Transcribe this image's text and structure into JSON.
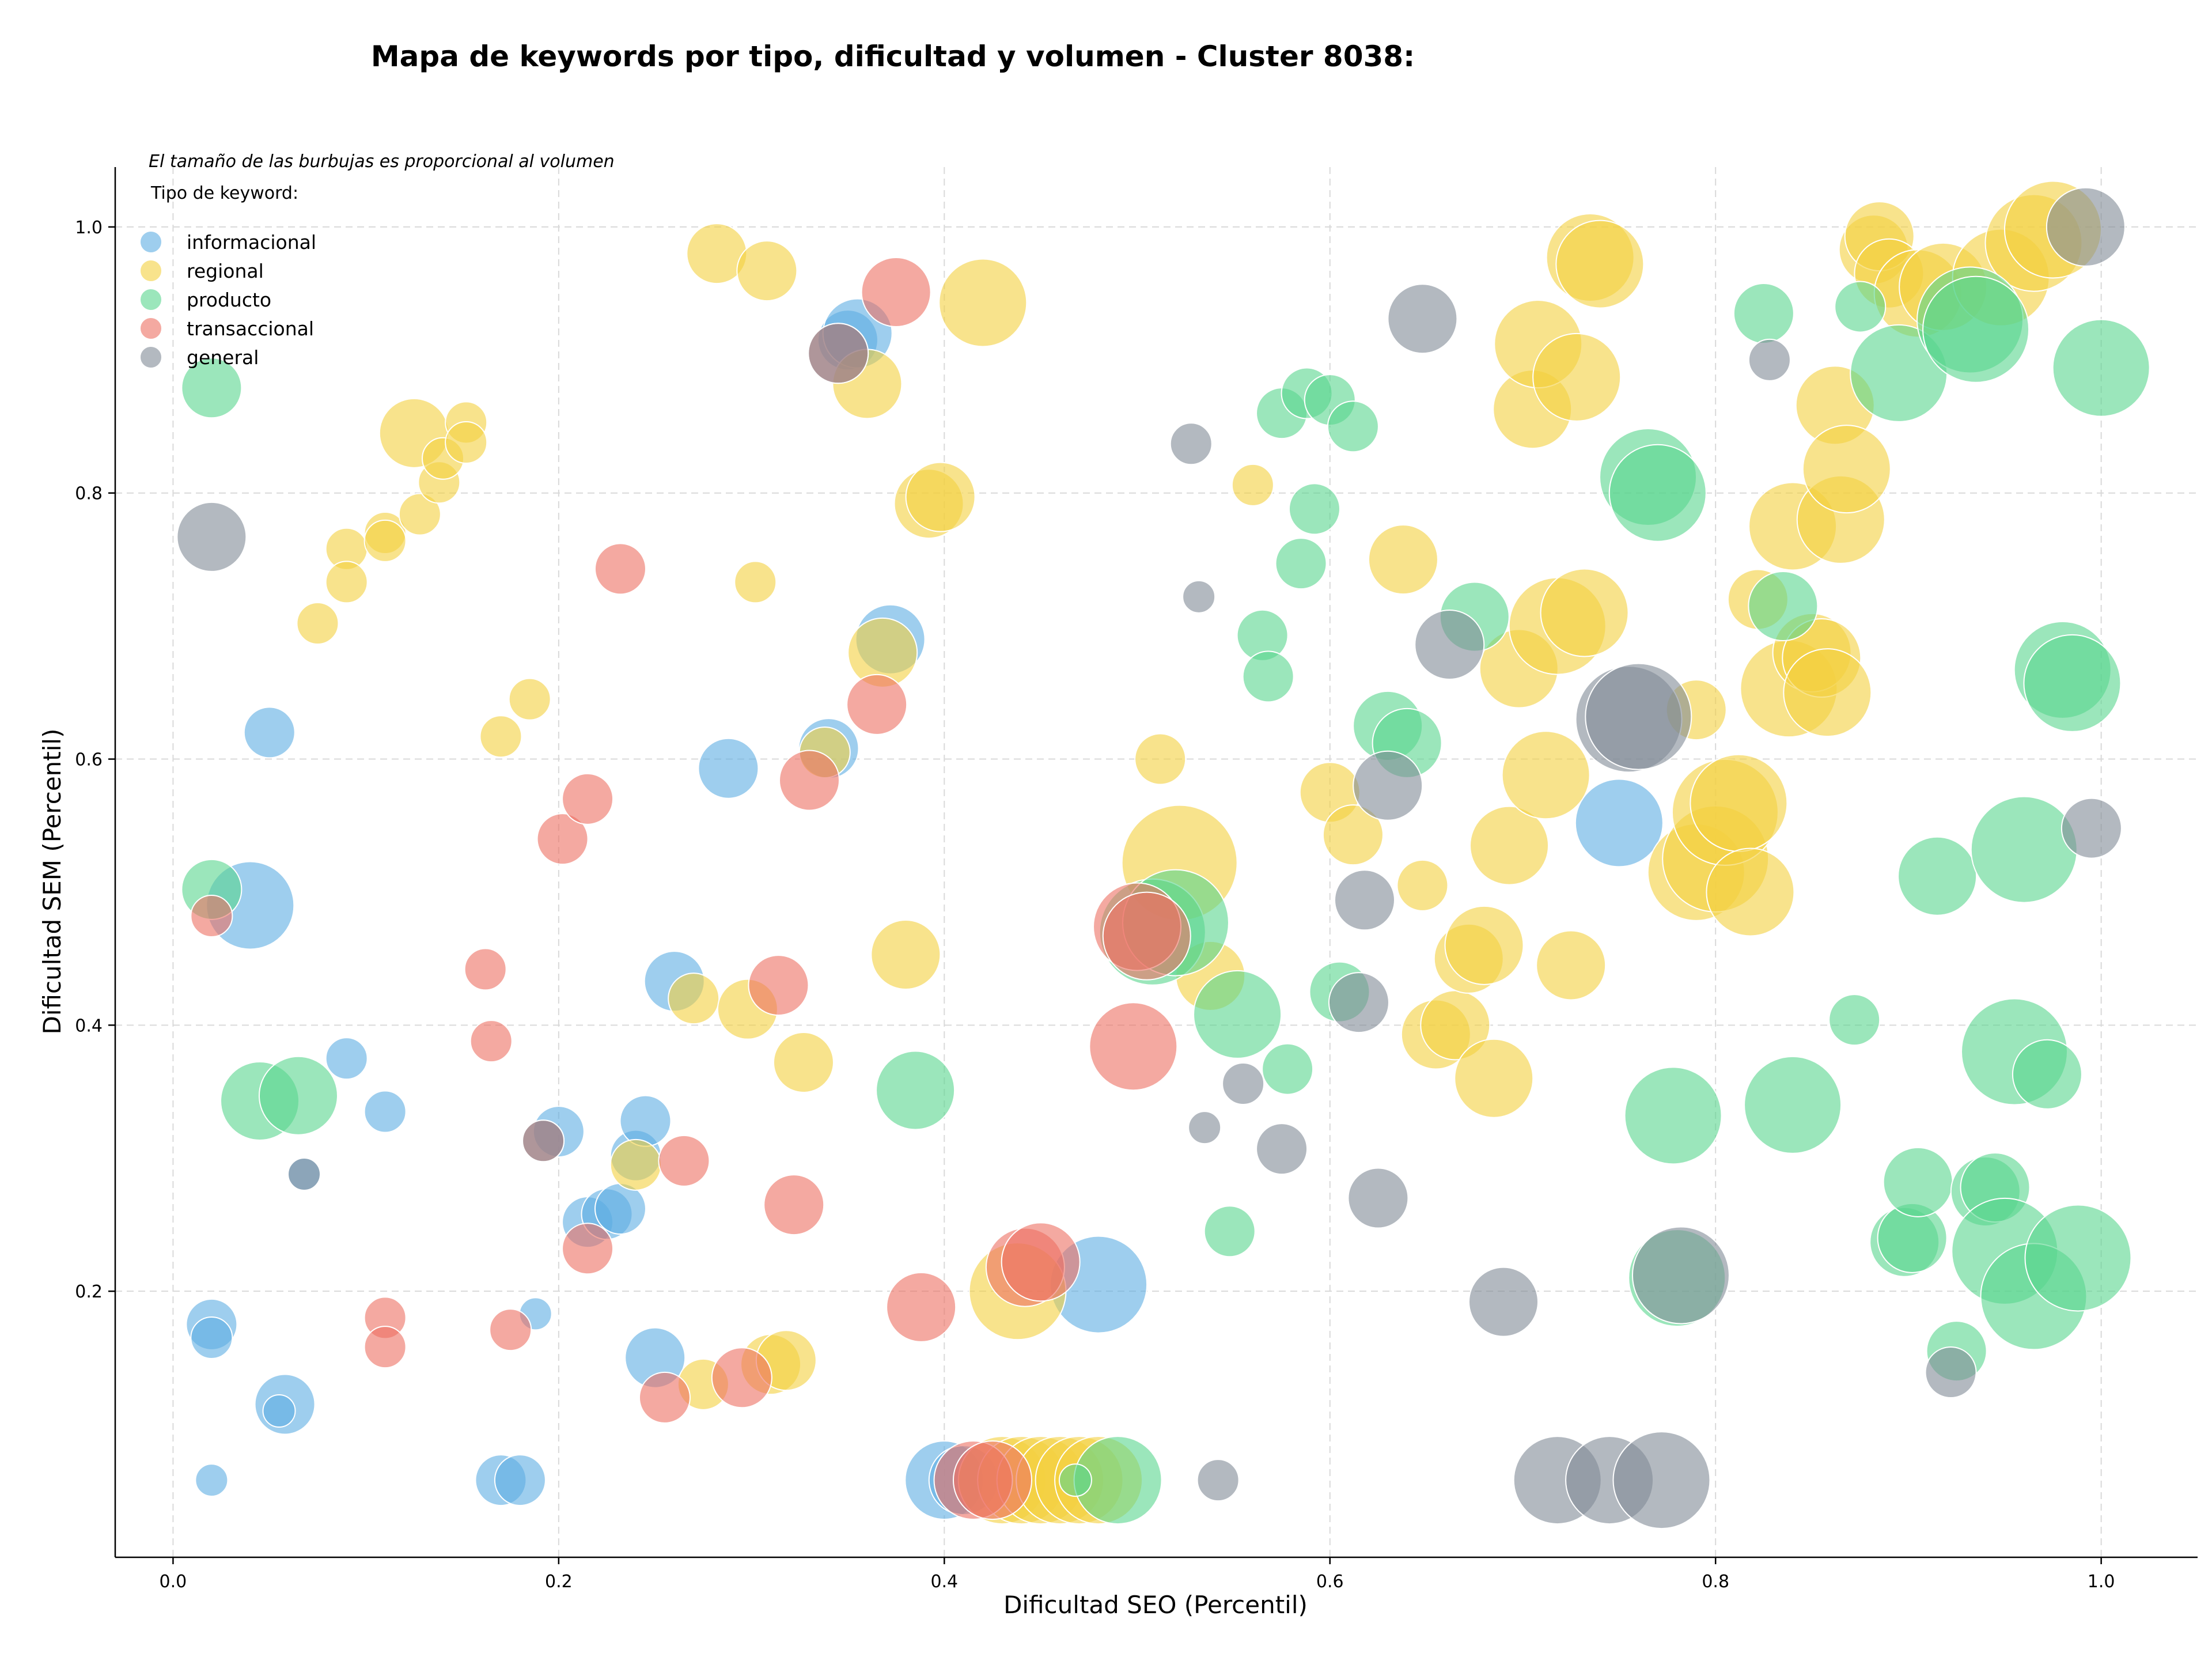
{
  "chart_data": {
    "type": "scatter",
    "title": "Mapa de keywords por tipo, dificultad y volumen - Cluster 8038:",
    "xlabel": "Dificultad SEO (Percentil)",
    "ylabel": "Dificultad SEM (Percentil)",
    "note": "El tamaño de las burbujas es proporcional al volumen",
    "legend_title": "Tipo de keyword:",
    "legend_position": "top-left",
    "grid": true,
    "xlim": [
      -0.03,
      1.05
    ],
    "ylim": [
      0.0,
      1.045
    ],
    "x_ticks": [
      "0.0",
      "0.2",
      "0.4",
      "0.6",
      "0.8",
      "1.0"
    ],
    "y_ticks": [
      "0.2",
      "0.4",
      "0.6",
      "0.8",
      "1.0"
    ],
    "x_tick_values": [
      0.0,
      0.2,
      0.4,
      0.6,
      0.8,
      1.0
    ],
    "y_tick_values": [
      0.2,
      0.4,
      0.6,
      0.8,
      1.0
    ],
    "series": [
      {
        "name": "informacional",
        "color": "#5dade2",
        "points": [
          [
            0.05,
            0.62,
            3
          ],
          [
            0.04,
            0.49,
            7
          ],
          [
            0.09,
            0.375,
            2
          ],
          [
            0.11,
            0.335,
            2
          ],
          [
            0.068,
            0.288,
            1
          ],
          [
            0.02,
            0.175,
            3
          ],
          [
            0.02,
            0.165,
            2
          ],
          [
            0.02,
            0.058,
            1
          ],
          [
            0.058,
            0.115,
            4
          ],
          [
            0.055,
            0.11,
            1
          ],
          [
            0.17,
            0.058,
            3
          ],
          [
            0.18,
            0.058,
            3
          ],
          [
            0.188,
            0.183,
            1
          ],
          [
            0.2,
            0.32,
            3
          ],
          [
            0.215,
            0.252,
            3
          ],
          [
            0.225,
            0.258,
            3
          ],
          [
            0.232,
            0.262,
            3
          ],
          [
            0.24,
            0.302,
            3
          ],
          [
            0.245,
            0.328,
            3
          ],
          [
            0.26,
            0.433,
            4
          ],
          [
            0.25,
            0.15,
            4
          ],
          [
            0.288,
            0.593,
            4
          ],
          [
            0.34,
            0.608,
            4
          ],
          [
            0.35,
            0.915,
            4
          ],
          [
            0.355,
            0.92,
            5
          ],
          [
            0.372,
            0.69,
            5
          ],
          [
            0.48,
            0.205,
            8
          ],
          [
            0.75,
            0.552,
            7
          ],
          [
            0.4,
            0.058,
            6
          ],
          [
            0.41,
            0.058,
            5
          ]
        ]
      },
      {
        "name": "regional",
        "color": "#f4d03f",
        "points": [
          [
            0.075,
            0.702,
            2
          ],
          [
            0.09,
            0.758,
            2
          ],
          [
            0.09,
            0.733,
            2
          ],
          [
            0.11,
            0.77,
            2
          ],
          [
            0.11,
            0.764,
            2
          ],
          [
            0.125,
            0.845,
            5
          ],
          [
            0.128,
            0.784,
            2
          ],
          [
            0.138,
            0.808,
            2
          ],
          [
            0.14,
            0.826,
            2
          ],
          [
            0.152,
            0.853,
            2
          ],
          [
            0.152,
            0.838,
            2
          ],
          [
            0.17,
            0.617,
            2
          ],
          [
            0.185,
            0.645,
            2
          ],
          [
            0.282,
            0.98,
            4
          ],
          [
            0.308,
            0.967,
            4
          ],
          [
            0.302,
            0.733,
            2
          ],
          [
            0.27,
            0.42,
            3
          ],
          [
            0.298,
            0.412,
            4
          ],
          [
            0.327,
            0.372,
            4
          ],
          [
            0.338,
            0.605,
            3
          ],
          [
            0.24,
            0.295,
            3
          ],
          [
            0.275,
            0.13,
            3
          ],
          [
            0.31,
            0.145,
            4
          ],
          [
            0.318,
            0.148,
            4
          ],
          [
            0.36,
            0.882,
            5
          ],
          [
            0.368,
            0.68,
            5
          ],
          [
            0.38,
            0.453,
            5
          ],
          [
            0.392,
            0.792,
            5
          ],
          [
            0.398,
            0.797,
            5
          ],
          [
            0.42,
            0.943,
            7
          ],
          [
            0.438,
            0.2,
            8
          ],
          [
            0.43,
            0.058,
            7
          ],
          [
            0.44,
            0.058,
            7
          ],
          [
            0.45,
            0.058,
            7
          ],
          [
            0.46,
            0.058,
            7
          ],
          [
            0.47,
            0.058,
            7
          ],
          [
            0.48,
            0.058,
            7
          ],
          [
            0.512,
            0.6,
            3
          ],
          [
            0.522,
            0.522,
            10
          ],
          [
            0.538,
            0.437,
            5
          ],
          [
            0.56,
            0.806,
            2
          ],
          [
            0.6,
            0.575,
            4
          ],
          [
            0.612,
            0.543,
            4
          ],
          [
            0.638,
            0.75,
            5
          ],
          [
            0.648,
            0.505,
            3
          ],
          [
            0.655,
            0.393,
            5
          ],
          [
            0.665,
            0.4,
            5
          ],
          [
            0.672,
            0.45,
            5
          ],
          [
            0.68,
            0.46,
            6
          ],
          [
            0.685,
            0.36,
            6
          ],
          [
            0.693,
            0.535,
            6
          ],
          [
            0.698,
            0.668,
            6
          ],
          [
            0.705,
            0.863,
            6
          ],
          [
            0.708,
            0.912,
            7
          ],
          [
            0.712,
            0.588,
            7
          ],
          [
            0.718,
            0.7,
            8
          ],
          [
            0.725,
            0.445,
            5
          ],
          [
            0.728,
            0.887,
            7
          ],
          [
            0.732,
            0.71,
            7
          ],
          [
            0.735,
            0.977,
            7
          ],
          [
            0.74,
            0.972,
            7
          ],
          [
            0.79,
            0.637,
            4
          ],
          [
            0.79,
            0.515,
            8
          ],
          [
            0.8,
            0.525,
            9
          ],
          [
            0.805,
            0.56,
            9
          ],
          [
            0.812,
            0.567,
            8
          ],
          [
            0.818,
            0.5,
            7
          ],
          [
            0.822,
            0.72,
            4
          ],
          [
            0.838,
            0.653,
            8
          ],
          [
            0.84,
            0.775,
            7
          ],
          [
            0.85,
            0.68,
            6
          ],
          [
            0.855,
            0.676,
            6
          ],
          [
            0.858,
            0.65,
            7
          ],
          [
            0.862,
            0.866,
            6
          ],
          [
            0.865,
            0.78,
            7
          ],
          [
            0.868,
            0.818,
            7
          ],
          [
            0.882,
            0.983,
            5
          ],
          [
            0.885,
            0.993,
            5
          ],
          [
            0.89,
            0.965,
            5
          ],
          [
            0.905,
            0.95,
            7
          ],
          [
            0.918,
            0.955,
            7
          ],
          [
            0.948,
            0.962,
            8
          ],
          [
            0.965,
            0.988,
            8
          ],
          [
            0.975,
            0.998,
            8
          ]
        ]
      },
      {
        "name": "producto",
        "color": "#58d68d",
        "points": [
          [
            0.02,
            0.879,
            4
          ],
          [
            0.02,
            0.502,
            4
          ],
          [
            0.045,
            0.343,
            6
          ],
          [
            0.065,
            0.347,
            6
          ],
          [
            0.385,
            0.351,
            6
          ],
          [
            0.49,
            0.058,
            7
          ],
          [
            0.468,
            0.058,
            1
          ],
          [
            0.508,
            0.47,
            9
          ],
          [
            0.52,
            0.477,
            9
          ],
          [
            0.548,
            0.245,
            3
          ],
          [
            0.552,
            0.408,
            7
          ],
          [
            0.565,
            0.693,
            3
          ],
          [
            0.568,
            0.662,
            3
          ],
          [
            0.575,
            0.86,
            3
          ],
          [
            0.578,
            0.367,
            3
          ],
          [
            0.585,
            0.747,
            3
          ],
          [
            0.588,
            0.875,
            3
          ],
          [
            0.592,
            0.788,
            3
          ],
          [
            0.6,
            0.87,
            3
          ],
          [
            0.605,
            0.425,
            4
          ],
          [
            0.612,
            0.85,
            3
          ],
          [
            0.63,
            0.625,
            5
          ],
          [
            0.64,
            0.612,
            5
          ],
          [
            0.675,
            0.707,
            5
          ],
          [
            0.765,
            0.812,
            8
          ],
          [
            0.77,
            0.8,
            8
          ],
          [
            0.778,
            0.332,
            8
          ],
          [
            0.78,
            0.21,
            8
          ],
          [
            0.825,
            0.935,
            4
          ],
          [
            0.835,
            0.715,
            5
          ],
          [
            0.84,
            0.34,
            8
          ],
          [
            0.872,
            0.404,
            3
          ],
          [
            0.875,
            0.94,
            3
          ],
          [
            0.895,
            0.89,
            8
          ],
          [
            0.898,
            0.237,
            5
          ],
          [
            0.902,
            0.24,
            5
          ],
          [
            0.905,
            0.282,
            5
          ],
          [
            0.915,
            0.512,
            6
          ],
          [
            0.925,
            0.155,
            4
          ],
          [
            0.932,
            0.93,
            9
          ],
          [
            0.935,
            0.923,
            9
          ],
          [
            0.94,
            0.275,
            5
          ],
          [
            0.945,
            0.278,
            5
          ],
          [
            0.95,
            0.23,
            9
          ],
          [
            0.955,
            0.38,
            9
          ],
          [
            0.96,
            0.532,
            9
          ],
          [
            0.965,
            0.196,
            9
          ],
          [
            0.972,
            0.363,
            5
          ],
          [
            0.98,
            0.667,
            8
          ],
          [
            0.985,
            0.657,
            8
          ],
          [
            0.988,
            0.225,
            9
          ],
          [
            1.0,
            0.894,
            8
          ]
        ]
      },
      {
        "name": "transaccional",
        "color": "#ec7063",
        "points": [
          [
            0.02,
            0.482,
            2
          ],
          [
            0.11,
            0.18,
            2
          ],
          [
            0.11,
            0.158,
            2
          ],
          [
            0.162,
            0.442,
            2
          ],
          [
            0.165,
            0.388,
            2
          ],
          [
            0.175,
            0.171,
            2
          ],
          [
            0.192,
            0.313,
            2
          ],
          [
            0.202,
            0.54,
            3
          ],
          [
            0.215,
            0.57,
            3
          ],
          [
            0.215,
            0.232,
            3
          ],
          [
            0.232,
            0.743,
            3
          ],
          [
            0.255,
            0.12,
            3
          ],
          [
            0.265,
            0.298,
            3
          ],
          [
            0.295,
            0.135,
            4
          ],
          [
            0.314,
            0.43,
            4
          ],
          [
            0.322,
            0.265,
            4
          ],
          [
            0.33,
            0.584,
            4
          ],
          [
            0.345,
            0.905,
            4
          ],
          [
            0.365,
            0.641,
            4
          ],
          [
            0.375,
            0.951,
            5
          ],
          [
            0.388,
            0.188,
            5
          ],
          [
            0.415,
            0.058,
            6
          ],
          [
            0.425,
            0.058,
            6
          ],
          [
            0.442,
            0.218,
            6
          ],
          [
            0.45,
            0.222,
            6
          ],
          [
            0.498,
            0.384,
            7
          ],
          [
            0.5,
            0.474,
            7
          ],
          [
            0.505,
            0.467,
            7
          ]
        ]
      },
      {
        "name": "general",
        "color": "#808b96",
        "points": [
          [
            0.02,
            0.767,
            5
          ],
          [
            0.068,
            0.288,
            1
          ],
          [
            0.192,
            0.313,
            2
          ],
          [
            0.345,
            0.905,
            4
          ],
          [
            0.528,
            0.837,
            2
          ],
          [
            0.532,
            0.722,
            1
          ],
          [
            0.535,
            0.323,
            1
          ],
          [
            0.542,
            0.058,
            2
          ],
          [
            0.555,
            0.356,
            2
          ],
          [
            0.575,
            0.307,
            3
          ],
          [
            0.618,
            0.494,
            4
          ],
          [
            0.625,
            0.27,
            4
          ],
          [
            0.615,
            0.417,
            4
          ],
          [
            0.63,
            0.58,
            5
          ],
          [
            0.648,
            0.931,
            5
          ],
          [
            0.662,
            0.686,
            5
          ],
          [
            0.69,
            0.192,
            5
          ],
          [
            0.718,
            0.058,
            7
          ],
          [
            0.745,
            0.058,
            7
          ],
          [
            0.755,
            0.63,
            9
          ],
          [
            0.76,
            0.632,
            9
          ],
          [
            0.772,
            0.058,
            8
          ],
          [
            0.782,
            0.212,
            8
          ],
          [
            0.828,
            0.9,
            2
          ],
          [
            0.922,
            0.139,
            3
          ],
          [
            0.992,
            1.0,
            6
          ],
          [
            0.995,
            0.548,
            4
          ]
        ]
      }
    ]
  }
}
